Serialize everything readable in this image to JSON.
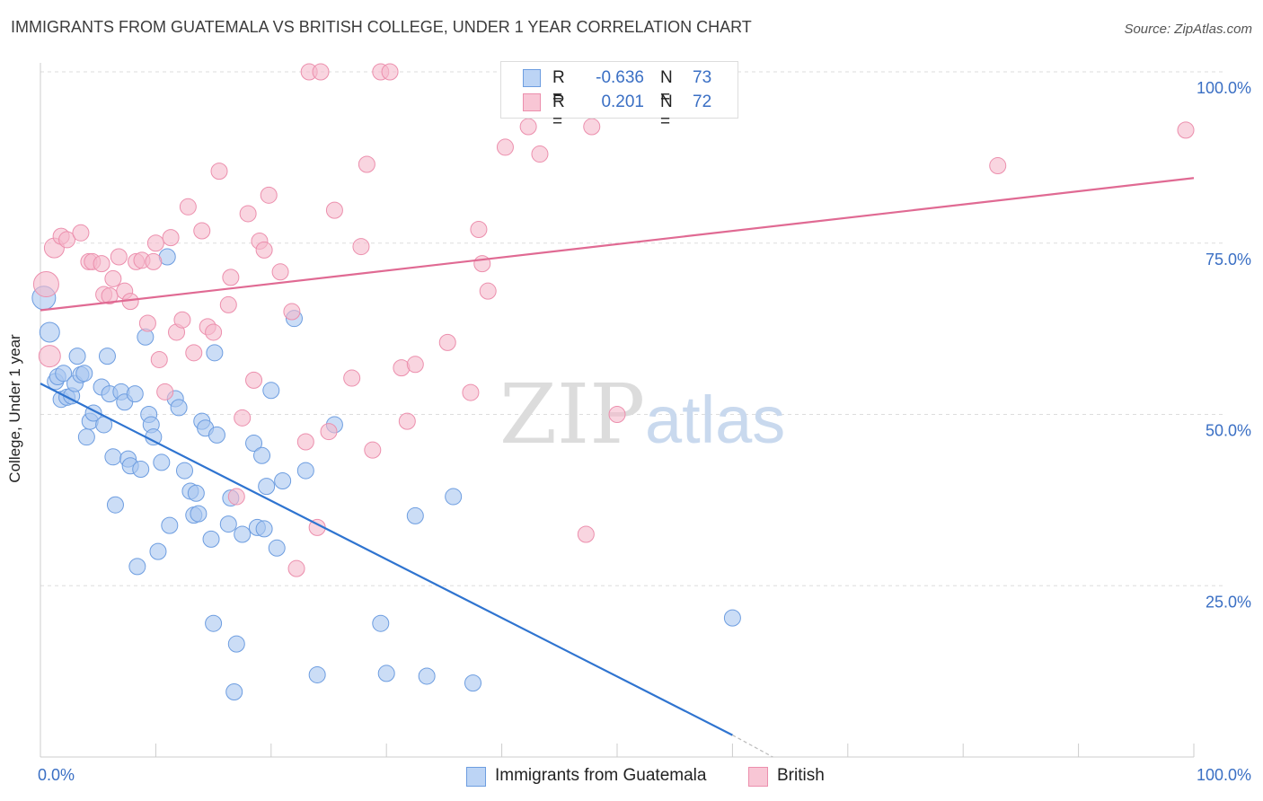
{
  "title": "IMMIGRANTS FROM GUATEMALA VS BRITISH COLLEGE, UNDER 1 YEAR CORRELATION CHART",
  "source": "Source: ZipAtlas.com",
  "watermark": {
    "zip": "ZIP",
    "atlas": "atlas"
  },
  "legend": {
    "r_label": "R =",
    "n_label": "N =",
    "rows": [
      {
        "r": "-0.636",
        "n": "73"
      },
      {
        "r": "0.201",
        "n": "72"
      }
    ]
  },
  "chart_data": {
    "type": "scatter",
    "title": "IMMIGRANTS FROM GUATEMALA VS BRITISH COLLEGE, UNDER 1 YEAR CORRELATION CHART",
    "xlabel": "",
    "ylabel": "College, Under 1 year",
    "xlim": [
      0,
      100
    ],
    "ylim": [
      0,
      102
    ],
    "x_tick_labels": [
      "0.0%",
      "100.0%"
    ],
    "y_tick_values": [
      25,
      50,
      75,
      100
    ],
    "y_tick_labels": [
      "25.0%",
      "50.0%",
      "75.0%",
      "100.0%"
    ],
    "grid": true,
    "legend_position": "top-center",
    "series": [
      {
        "name": "Immigrants from Guatemala",
        "color": "#a9c7f0",
        "edge": "#6d9de0",
        "trend_color": "#2f74d0",
        "trend": {
          "x": [
            0,
            60
          ],
          "y": [
            54.5,
            3.2
          ],
          "dash_to": [
            63.5,
            0
          ]
        },
        "points": [
          [
            0.3,
            67.0
          ],
          [
            0.8,
            62.0
          ],
          [
            1.3,
            54.8
          ],
          [
            1.5,
            55.5
          ],
          [
            1.8,
            52.2
          ],
          [
            2.0,
            56.0
          ],
          [
            2.3,
            52.5
          ],
          [
            2.7,
            52.7
          ],
          [
            3.0,
            54.5
          ],
          [
            3.2,
            58.5
          ],
          [
            3.5,
            55.8
          ],
          [
            3.8,
            56.0
          ],
          [
            4.0,
            46.7
          ],
          [
            4.3,
            49.0
          ],
          [
            4.6,
            50.2
          ],
          [
            5.3,
            54.0
          ],
          [
            5.5,
            48.5
          ],
          [
            5.8,
            58.5
          ],
          [
            6.0,
            53.0
          ],
          [
            6.3,
            43.8
          ],
          [
            6.5,
            36.8
          ],
          [
            7.0,
            53.3
          ],
          [
            7.3,
            51.8
          ],
          [
            7.6,
            43.5
          ],
          [
            7.8,
            42.5
          ],
          [
            8.2,
            53.0
          ],
          [
            8.4,
            27.8
          ],
          [
            8.7,
            42.0
          ],
          [
            9.1,
            61.3
          ],
          [
            9.4,
            50.0
          ],
          [
            9.6,
            48.5
          ],
          [
            9.8,
            46.7
          ],
          [
            10.2,
            30.0
          ],
          [
            10.5,
            43.0
          ],
          [
            11.0,
            73.0
          ],
          [
            11.2,
            33.8
          ],
          [
            11.7,
            52.3
          ],
          [
            12.0,
            51.0
          ],
          [
            12.5,
            41.8
          ],
          [
            13.0,
            38.8
          ],
          [
            13.3,
            35.3
          ],
          [
            13.5,
            38.5
          ],
          [
            13.7,
            35.5
          ],
          [
            14.0,
            49.0
          ],
          [
            14.3,
            48.0
          ],
          [
            14.8,
            31.8
          ],
          [
            15.0,
            19.5
          ],
          [
            15.1,
            59.0
          ],
          [
            15.3,
            47.0
          ],
          [
            16.3,
            34.0
          ],
          [
            16.5,
            37.8
          ],
          [
            16.8,
            9.5
          ],
          [
            17.0,
            16.5
          ],
          [
            17.5,
            32.5
          ],
          [
            18.5,
            45.8
          ],
          [
            18.8,
            33.5
          ],
          [
            19.2,
            44.0
          ],
          [
            19.4,
            33.3
          ],
          [
            19.6,
            39.5
          ],
          [
            20.0,
            53.5
          ],
          [
            20.5,
            30.5
          ],
          [
            21.0,
            40.3
          ],
          [
            22.0,
            64.0
          ],
          [
            23.0,
            41.8
          ],
          [
            24.0,
            12.0
          ],
          [
            25.5,
            48.5
          ],
          [
            29.5,
            19.5
          ],
          [
            30.0,
            12.2
          ],
          [
            32.5,
            35.2
          ],
          [
            33.5,
            11.8
          ],
          [
            35.8,
            38.0
          ],
          [
            37.5,
            10.8
          ],
          [
            60.0,
            20.3
          ]
        ]
      },
      {
        "name": "British",
        "color": "#f5b9cb",
        "edge": "#ec8fad",
        "trend_color": "#e06a93",
        "trend": {
          "x": [
            0,
            100
          ],
          "y": [
            65.2,
            84.5
          ]
        },
        "points": [
          [
            0.5,
            69.0
          ],
          [
            0.8,
            58.5
          ],
          [
            1.2,
            74.3
          ],
          [
            1.8,
            76.0
          ],
          [
            2.3,
            75.5
          ],
          [
            3.5,
            76.5
          ],
          [
            4.2,
            72.3
          ],
          [
            4.5,
            72.3
          ],
          [
            5.3,
            72.0
          ],
          [
            5.5,
            67.5
          ],
          [
            6.0,
            67.3
          ],
          [
            6.3,
            69.8
          ],
          [
            6.8,
            73.0
          ],
          [
            7.3,
            68.0
          ],
          [
            7.8,
            66.5
          ],
          [
            8.3,
            72.3
          ],
          [
            8.8,
            72.5
          ],
          [
            9.3,
            63.3
          ],
          [
            9.8,
            72.3
          ],
          [
            10.0,
            75.0
          ],
          [
            10.3,
            58.0
          ],
          [
            10.8,
            53.3
          ],
          [
            11.3,
            75.8
          ],
          [
            11.8,
            62.0
          ],
          [
            12.3,
            63.8
          ],
          [
            12.8,
            80.3
          ],
          [
            13.3,
            59.0
          ],
          [
            14.0,
            76.8
          ],
          [
            14.5,
            62.8
          ],
          [
            15.0,
            62.0
          ],
          [
            15.5,
            85.5
          ],
          [
            16.3,
            66.0
          ],
          [
            16.5,
            70.0
          ],
          [
            17.0,
            38.0
          ],
          [
            17.5,
            49.5
          ],
          [
            18.0,
            79.3
          ],
          [
            18.5,
            55.0
          ],
          [
            19.0,
            75.3
          ],
          [
            19.4,
            74.0
          ],
          [
            19.8,
            82.0
          ],
          [
            20.8,
            70.8
          ],
          [
            21.8,
            65.0
          ],
          [
            22.2,
            27.5
          ],
          [
            23.0,
            46.0
          ],
          [
            23.3,
            100.0
          ],
          [
            24.0,
            33.5
          ],
          [
            24.3,
            100.0
          ],
          [
            25.0,
            47.5
          ],
          [
            25.5,
            79.8
          ],
          [
            27.0,
            55.3
          ],
          [
            27.8,
            74.5
          ],
          [
            28.3,
            86.5
          ],
          [
            28.8,
            44.8
          ],
          [
            29.5,
            100.0
          ],
          [
            30.3,
            100.0
          ],
          [
            31.3,
            56.8
          ],
          [
            31.8,
            49.0
          ],
          [
            32.5,
            57.3
          ],
          [
            35.3,
            60.5
          ],
          [
            37.3,
            53.2
          ],
          [
            38.3,
            72.0
          ],
          [
            38.8,
            68.0
          ],
          [
            40.3,
            89.0
          ],
          [
            42.3,
            92.0
          ],
          [
            43.3,
            88.0
          ],
          [
            47.3,
            32.5
          ],
          [
            47.8,
            92.0
          ],
          [
            50.0,
            50.0
          ],
          [
            51.3,
            100.0
          ],
          [
            83.0,
            86.3
          ],
          [
            99.3,
            91.5
          ],
          [
            38.0,
            77.0
          ]
        ]
      }
    ]
  }
}
